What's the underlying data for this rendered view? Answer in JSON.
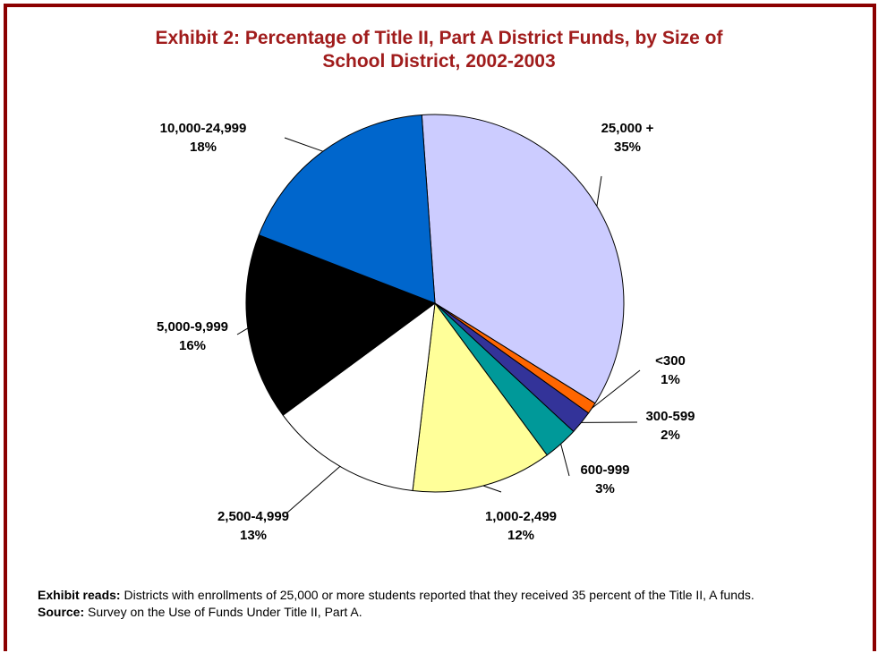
{
  "chart_data": {
    "type": "pie",
    "title_lines": [
      "Exhibit 2: Percentage of Title II, Part A District Funds, by Size of",
      "School District, 2002-2003"
    ],
    "start_angle_deg": -4,
    "direction": "clockwise",
    "slices": [
      {
        "label": "25,000 +",
        "value": 35,
        "value_label": "35%",
        "color": "#ccccff"
      },
      {
        "label": "<300",
        "value": 1,
        "value_label": "1%",
        "color": "#ff6600"
      },
      {
        "label": "300-599",
        "value": 2,
        "value_label": "2%",
        "color": "#333399"
      },
      {
        "label": "600-999",
        "value": 3,
        "value_label": "3%",
        "color": "#009999"
      },
      {
        "label": "1,000-2,499",
        "value": 12,
        "value_label": "12%",
        "color": "#ffff99"
      },
      {
        "label": "2,500-4,999",
        "value": 13,
        "value_label": "13%",
        "color": "#ffffff"
      },
      {
        "label": "5,000-9,999",
        "value": 16,
        "value_label": "16%",
        "color": "#000000"
      },
      {
        "label": "10,000-24,999",
        "value": 18,
        "value_label": "18%",
        "color": "#0066cc"
      }
    ]
  },
  "notes": {
    "reads_label": "Exhibit reads:",
    "reads_text": " Districts with enrollments of 25,000 or more students reported that they received 35 percent of the Title II, A funds.",
    "source_label": "Source:",
    "source_text": " Survey on the Use of Funds Under Title II, Part A."
  },
  "colors": {
    "frame": "#8b0000",
    "title": "#a01c1c"
  }
}
